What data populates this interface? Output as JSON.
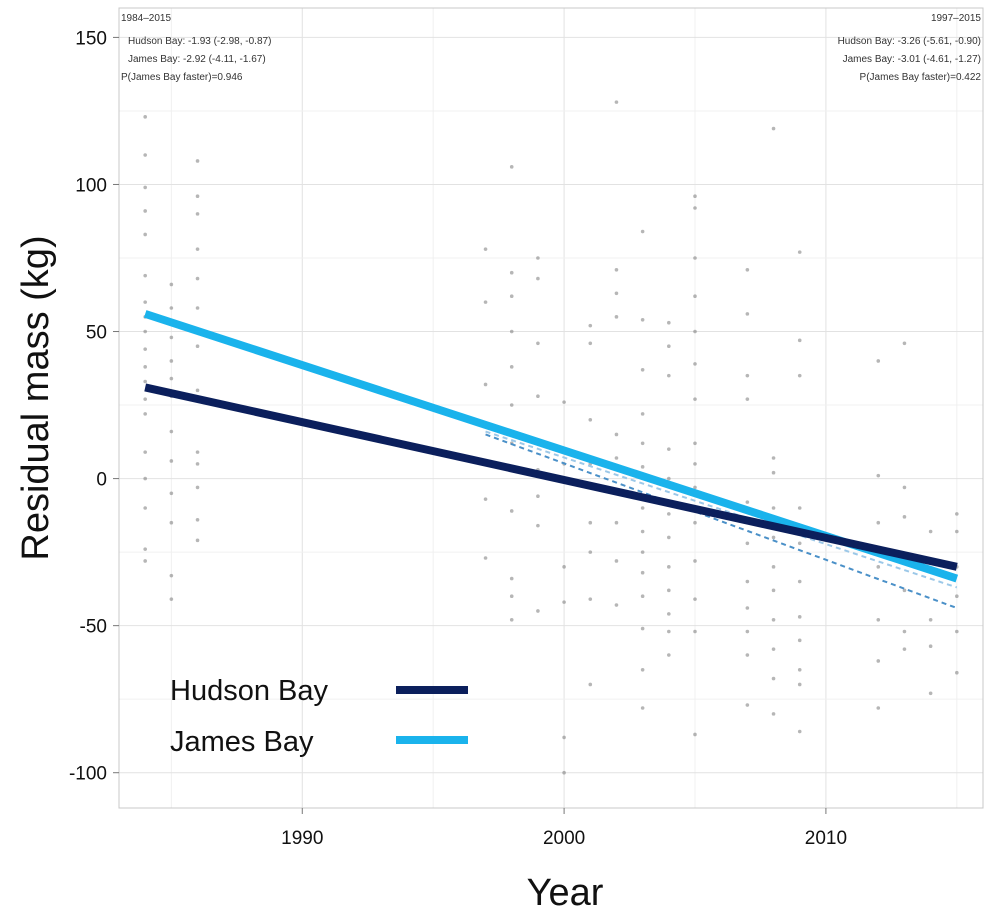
{
  "chart_data": {
    "type": "line",
    "xlabel": "Year",
    "ylabel": "Residual mass (kg)",
    "xlim": [
      1983,
      2016
    ],
    "ylim": [
      -112,
      160
    ],
    "x_ticks": [
      1990,
      2000,
      2010
    ],
    "y_ticks": [
      150,
      100,
      50,
      0,
      -50,
      -100
    ],
    "grid": true,
    "legend_position": "bottom-left",
    "series": [
      {
        "name": "Hudson Bay",
        "color": "#0b1f5c",
        "style": "solid",
        "x": [
          1984,
          2015
        ],
        "y": [
          31,
          -30
        ]
      },
      {
        "name": "James Bay",
        "color": "#1ab3ec",
        "style": "solid",
        "x": [
          1984,
          2015
        ],
        "y": [
          56,
          -34
        ]
      },
      {
        "color": "#4a90c8",
        "style": "dashed",
        "x": [
          1997,
          2015
        ],
        "y": [
          15,
          -44
        ]
      },
      {
        "color": "#9cc8e8",
        "style": "dashed",
        "x": [
          1997,
          2015
        ],
        "y": [
          16,
          -37
        ]
      }
    ],
    "annotations": {
      "left": [
        "1984–2015",
        "Hudson Bay: -1.93 (-2.98, -0.87)",
        "James Bay: -2.92 (-4.11, -1.67)",
        "P(James Bay faster)=0.946"
      ],
      "right": [
        "1997–2015",
        "Hudson Bay: -3.26 (-5.61, -0.90)",
        "James Bay: -3.01 (-4.61, -1.27)",
        "P(James Bay faster)=0.422"
      ]
    },
    "points": [
      [
        1984,
        123
      ],
      [
        1984,
        110
      ],
      [
        1984,
        99
      ],
      [
        1984,
        91
      ],
      [
        1984,
        83
      ],
      [
        1984,
        69
      ],
      [
        1984,
        60
      ],
      [
        1984,
        55
      ],
      [
        1984,
        50
      ],
      [
        1984,
        44
      ],
      [
        1984,
        38
      ],
      [
        1984,
        33
      ],
      [
        1984,
        27
      ],
      [
        1984,
        22
      ],
      [
        1984,
        9
      ],
      [
        1984,
        0
      ],
      [
        1984,
        -10
      ],
      [
        1984,
        -24
      ],
      [
        1984,
        -28
      ],
      [
        1985,
        66
      ],
      [
        1985,
        58
      ],
      [
        1985,
        48
      ],
      [
        1985,
        40
      ],
      [
        1985,
        34
      ],
      [
        1985,
        28
      ],
      [
        1985,
        16
      ],
      [
        1985,
        6
      ],
      [
        1985,
        -5
      ],
      [
        1985,
        -15
      ],
      [
        1985,
        -33
      ],
      [
        1985,
        -41
      ],
      [
        1986,
        108
      ],
      [
        1986,
        96
      ],
      [
        1986,
        90
      ],
      [
        1986,
        78
      ],
      [
        1986,
        68
      ],
      [
        1986,
        58
      ],
      [
        1986,
        45
      ],
      [
        1986,
        30
      ],
      [
        1986,
        9
      ],
      [
        1986,
        5
      ],
      [
        1986,
        -3
      ],
      [
        1986,
        -14
      ],
      [
        1986,
        -21
      ],
      [
        1997,
        78
      ],
      [
        1997,
        60
      ],
      [
        1997,
        32
      ],
      [
        1997,
        -7
      ],
      [
        1997,
        -27
      ],
      [
        1998,
        106
      ],
      [
        1998,
        70
      ],
      [
        1998,
        62
      ],
      [
        1998,
        50
      ],
      [
        1998,
        38
      ],
      [
        1998,
        25
      ],
      [
        1998,
        12
      ],
      [
        1998,
        -11
      ],
      [
        1998,
        -34
      ],
      [
        1998,
        -40
      ],
      [
        1998,
        -48
      ],
      [
        1999,
        75
      ],
      [
        1999,
        68
      ],
      [
        1999,
        46
      ],
      [
        1999,
        28
      ],
      [
        1999,
        12
      ],
      [
        1999,
        3
      ],
      [
        1999,
        -6
      ],
      [
        1999,
        -16
      ],
      [
        1999,
        -45
      ],
      [
        2000,
        26
      ],
      [
        2000,
        5
      ],
      [
        2000,
        -30
      ],
      [
        2000,
        -42
      ],
      [
        2000,
        -88
      ],
      [
        2000,
        -100
      ],
      [
        2001,
        52
      ],
      [
        2001,
        46
      ],
      [
        2001,
        20
      ],
      [
        2001,
        5
      ],
      [
        2001,
        -15
      ],
      [
        2001,
        -25
      ],
      [
        2001,
        -41
      ],
      [
        2001,
        -70
      ],
      [
        2002,
        128
      ],
      [
        2002,
        71
      ],
      [
        2002,
        63
      ],
      [
        2002,
        55
      ],
      [
        2002,
        15
      ],
      [
        2002,
        7
      ],
      [
        2002,
        -5
      ],
      [
        2002,
        -15
      ],
      [
        2002,
        -28
      ],
      [
        2002,
        -43
      ],
      [
        2003,
        84
      ],
      [
        2003,
        54
      ],
      [
        2003,
        37
      ],
      [
        2003,
        22
      ],
      [
        2003,
        12
      ],
      [
        2003,
        4
      ],
      [
        2003,
        -10
      ],
      [
        2003,
        -18
      ],
      [
        2003,
        -25
      ],
      [
        2003,
        -32
      ],
      [
        2003,
        -40
      ],
      [
        2003,
        -51
      ],
      [
        2003,
        -65
      ],
      [
        2003,
        -78
      ],
      [
        2004,
        53
      ],
      [
        2004,
        45
      ],
      [
        2004,
        35
      ],
      [
        2004,
        10
      ],
      [
        2004,
        0
      ],
      [
        2004,
        -12
      ],
      [
        2004,
        -20
      ],
      [
        2004,
        -30
      ],
      [
        2004,
        -38
      ],
      [
        2004,
        -46
      ],
      [
        2004,
        -52
      ],
      [
        2004,
        -60
      ],
      [
        2005,
        96
      ],
      [
        2005,
        92
      ],
      [
        2005,
        75
      ],
      [
        2005,
        62
      ],
      [
        2005,
        50
      ],
      [
        2005,
        39
      ],
      [
        2005,
        27
      ],
      [
        2005,
        12
      ],
      [
        2005,
        5
      ],
      [
        2005,
        -3
      ],
      [
        2005,
        -15
      ],
      [
        2005,
        -28
      ],
      [
        2005,
        -41
      ],
      [
        2005,
        -52
      ],
      [
        2005,
        -87
      ],
      [
        2007,
        71
      ],
      [
        2007,
        56
      ],
      [
        2007,
        35
      ],
      [
        2007,
        27
      ],
      [
        2007,
        -8
      ],
      [
        2007,
        -22
      ],
      [
        2007,
        -35
      ],
      [
        2007,
        -44
      ],
      [
        2007,
        -52
      ],
      [
        2007,
        -60
      ],
      [
        2007,
        -77
      ],
      [
        2008,
        119
      ],
      [
        2008,
        7
      ],
      [
        2008,
        2
      ],
      [
        2008,
        -10
      ],
      [
        2008,
        -20
      ],
      [
        2008,
        -30
      ],
      [
        2008,
        -38
      ],
      [
        2008,
        -48
      ],
      [
        2008,
        -58
      ],
      [
        2008,
        -68
      ],
      [
        2008,
        -80
      ],
      [
        2009,
        77
      ],
      [
        2009,
        47
      ],
      [
        2009,
        35
      ],
      [
        2009,
        -10
      ],
      [
        2009,
        -22
      ],
      [
        2009,
        -35
      ],
      [
        2009,
        -47
      ],
      [
        2009,
        -55
      ],
      [
        2009,
        -65
      ],
      [
        2009,
        -70
      ],
      [
        2009,
        -86
      ],
      [
        2012,
        40
      ],
      [
        2012,
        1
      ],
      [
        2012,
        -15
      ],
      [
        2012,
        -30
      ],
      [
        2012,
        -48
      ],
      [
        2012,
        -62
      ],
      [
        2012,
        -78
      ],
      [
        2013,
        46
      ],
      [
        2013,
        -3
      ],
      [
        2013,
        -13
      ],
      [
        2013,
        -38
      ],
      [
        2013,
        -52
      ],
      [
        2013,
        -58
      ],
      [
        2014,
        -18
      ],
      [
        2014,
        -48
      ],
      [
        2014,
        -57
      ],
      [
        2014,
        -73
      ],
      [
        2015,
        -12
      ],
      [
        2015,
        -18
      ],
      [
        2015,
        -30
      ],
      [
        2015,
        -40
      ],
      [
        2015,
        -52
      ],
      [
        2015,
        -66
      ]
    ]
  }
}
